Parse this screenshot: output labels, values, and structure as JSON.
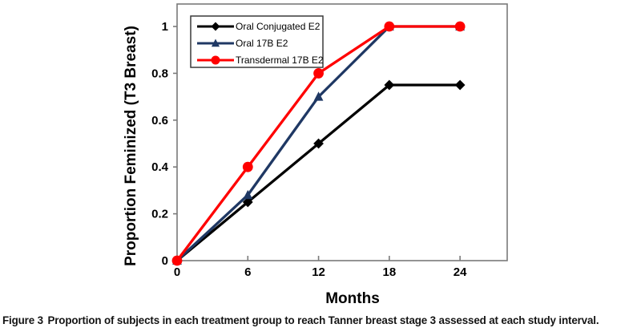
{
  "figure": {
    "caption_label": "Figure 3",
    "caption_text": "Proportion of subjects in each treatment group to reach Tanner breast stage 3 assessed at each study interval."
  },
  "chart_data": {
    "type": "line",
    "title": "",
    "xlabel": "Months",
    "ylabel": "Proportion Feminized (T3 Breast)",
    "x": [
      0,
      6,
      12,
      18,
      24
    ],
    "xticks": [
      0,
      6,
      12,
      18,
      24
    ],
    "xtick_labels": [
      "0",
      "6",
      "12",
      "18",
      "24"
    ],
    "yticks": [
      0,
      0.2,
      0.4,
      0.6,
      0.8,
      1
    ],
    "ytick_labels": [
      "0",
      "0.2",
      "0.4",
      "0.6",
      "0.8",
      "1"
    ],
    "xlim": [
      0,
      28
    ],
    "ylim": [
      0,
      1.096
    ],
    "grid": false,
    "legend_position": "top-left-inside",
    "axis_color": "#7a7a7a",
    "legend_border_color": "#3a3a3a",
    "background_color": "#ffffff",
    "series": [
      {
        "name": "Oral Conjugated E2",
        "color": "#000000",
        "marker": "diamond",
        "values": [
          0,
          0.25,
          0.5,
          0.75,
          0.75
        ]
      },
      {
        "name": "Oral 17B E2",
        "color": "#1F3864",
        "marker": "triangle",
        "values": [
          0,
          0.28,
          0.7,
          1,
          1
        ]
      },
      {
        "name": "Transdermal 17B E2",
        "color": "#FF0000",
        "marker": "circle",
        "values": [
          0,
          0.4,
          0.8,
          1,
          1
        ]
      }
    ]
  }
}
